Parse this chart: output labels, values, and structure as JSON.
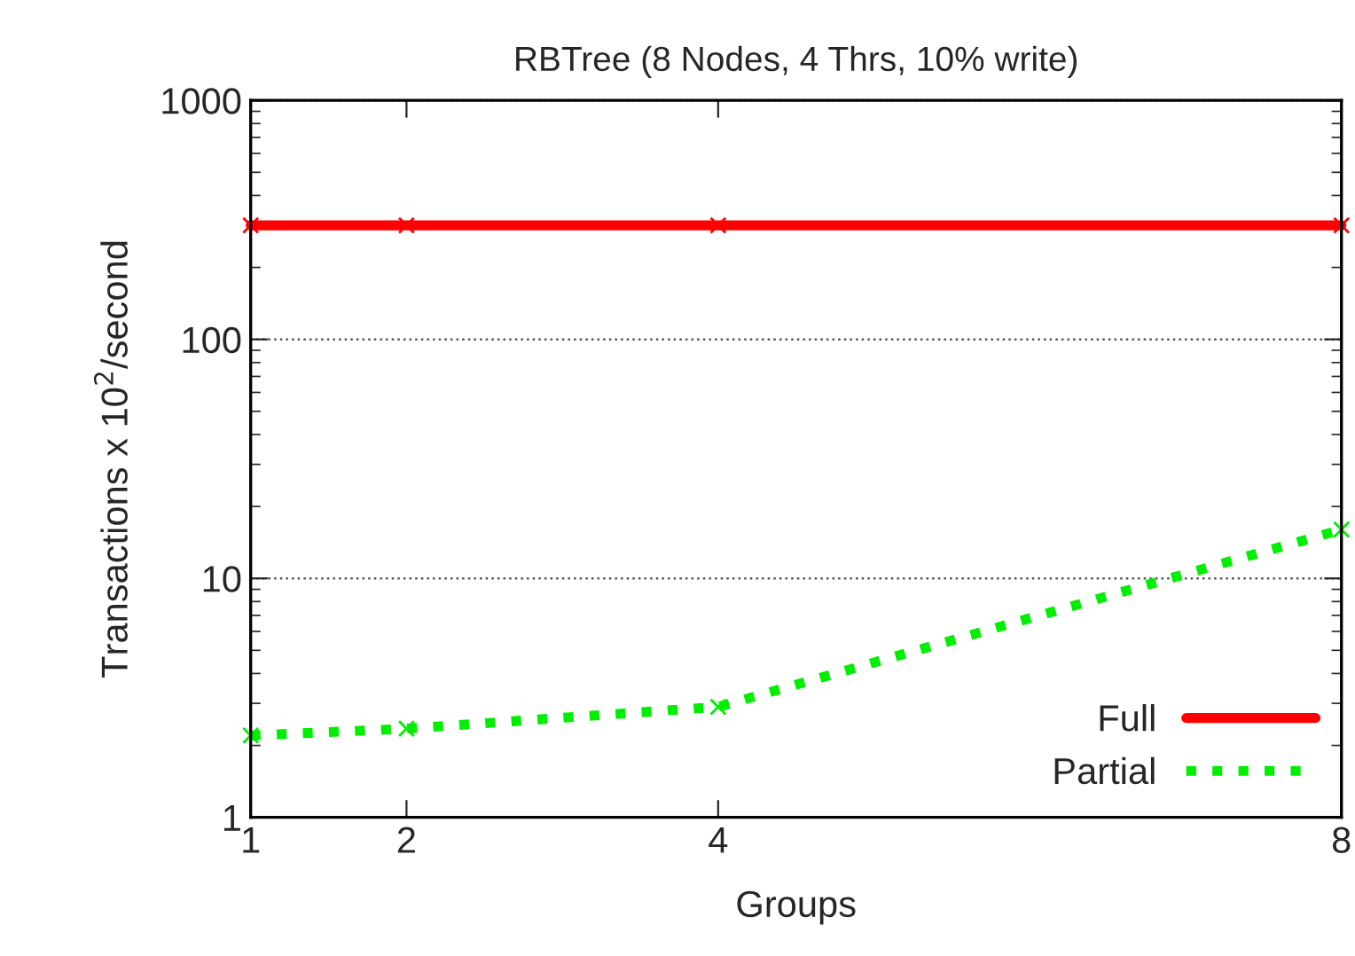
{
  "chart_data": {
    "type": "line",
    "title": "RBTree (8 Nodes, 4 Thrs, 10% write)",
    "xlabel": "Groups",
    "ylabel": "Transactions x 10$^{2}$/second",
    "x": [
      1,
      2,
      4,
      8
    ],
    "series": [
      {
        "name": "Full",
        "color": "#ff0000",
        "values": [
          300,
          300,
          300,
          300
        ],
        "line_style": "solid",
        "marker": "cross"
      },
      {
        "name": "Partial",
        "color": "#00ee00",
        "values": [
          2.2,
          2.35,
          2.9,
          16
        ],
        "line_style": "dotted",
        "marker": "cross"
      }
    ],
    "log": "y",
    "xlim": [
      1,
      8
    ],
    "xticks": [
      1,
      2,
      4,
      8
    ],
    "ylim": [
      1,
      1000
    ],
    "yticks": [
      1,
      10,
      100,
      1000
    ],
    "grid": "y",
    "legend": "bottom right"
  }
}
